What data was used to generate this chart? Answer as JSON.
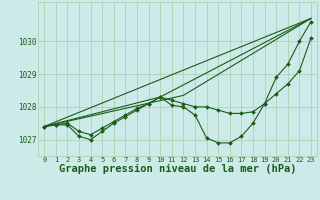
{
  "background_color": "#cceae7",
  "grid_color": "#aaccaa",
  "line_color": "#1a5c1a",
  "marker_color": "#1a5c1a",
  "xlabel": "Graphe pression niveau de la mer (hPa)",
  "xlabel_fontsize": 7.5,
  "xlim": [
    -0.5,
    23.5
  ],
  "ylim": [
    1026.5,
    1031.2
  ],
  "yticks": [
    1027,
    1028,
    1029,
    1030
  ],
  "xticks": [
    0,
    1,
    2,
    3,
    4,
    5,
    6,
    7,
    8,
    9,
    10,
    11,
    12,
    13,
    14,
    15,
    16,
    17,
    18,
    19,
    20,
    21,
    22,
    23
  ],
  "lines": [
    {
      "x": [
        0,
        23
      ],
      "y": [
        1027.4,
        1030.7
      ]
    },
    {
      "x": [
        0,
        1,
        2,
        3,
        4,
        5,
        6,
        7,
        8,
        9,
        10,
        11,
        12,
        13,
        14,
        15,
        16,
        17,
        18,
        19,
        20,
        21,
        22,
        23
      ],
      "y": [
        1027.4,
        1027.45,
        1027.45,
        1027.1,
        1027.0,
        1027.25,
        1027.5,
        1027.7,
        1027.9,
        1028.1,
        1028.3,
        1028.05,
        1028.0,
        1027.75,
        1027.05,
        1026.9,
        1026.9,
        1027.1,
        1027.5,
        1028.1,
        1028.9,
        1029.3,
        1030.0,
        1030.6
      ]
    },
    {
      "x": [
        0,
        12,
        23
      ],
      "y": [
        1027.4,
        1028.35,
        1030.7
      ]
    },
    {
      "x": [
        0,
        10,
        23
      ],
      "y": [
        1027.4,
        1028.3,
        1030.7
      ]
    },
    {
      "x": [
        0,
        1,
        2,
        3,
        4,
        5,
        6,
        7,
        8,
        9,
        10,
        11,
        12,
        13,
        14,
        15,
        16,
        17,
        18,
        19,
        20,
        21,
        22,
        23
      ],
      "y": [
        1027.4,
        1027.45,
        1027.5,
        1027.25,
        1027.15,
        1027.35,
        1027.55,
        1027.75,
        1027.95,
        1028.1,
        1028.3,
        1028.2,
        1028.1,
        1028.0,
        1028.0,
        1027.9,
        1027.8,
        1027.8,
        1027.85,
        1028.1,
        1028.4,
        1028.7,
        1029.1,
        1030.1
      ]
    }
  ]
}
